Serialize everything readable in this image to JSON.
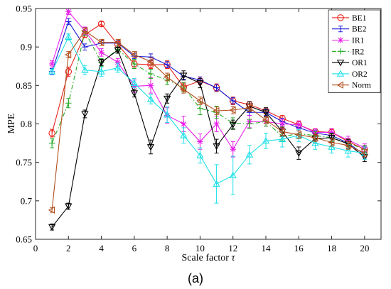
{
  "chart_data": {
    "type": "line",
    "xlabel": "Scale factor τ",
    "ylabel": "MPE",
    "panel_label": "(a)",
    "xlim": [
      0,
      21
    ],
    "ylim": [
      0.65,
      0.95
    ],
    "xticks": [
      0,
      2,
      4,
      6,
      8,
      10,
      12,
      14,
      16,
      18,
      20
    ],
    "yticks": [
      0.65,
      0.7,
      0.75,
      0.8,
      0.85,
      0.9,
      0.95
    ],
    "grid": false,
    "legend_position": "top-right",
    "x": [
      1,
      2,
      3,
      4,
      5,
      6,
      7,
      8,
      9,
      10,
      11,
      12,
      13,
      14,
      15,
      16,
      17,
      18,
      19,
      20
    ],
    "series": [
      {
        "name": "BE1",
        "color": "#e8231d",
        "dash": "",
        "marker": "circle",
        "values": [
          0.788,
          0.868,
          0.916,
          0.93,
          0.903,
          0.878,
          0.877,
          0.877,
          0.848,
          0.856,
          0.847,
          0.83,
          0.825,
          0.817,
          0.807,
          0.799,
          0.79,
          0.789,
          0.777,
          0.767
        ],
        "errors": [
          0.005,
          0.006,
          0.004,
          0.003,
          0.004,
          0.004,
          0.005,
          0.005,
          0.005,
          0.005,
          0.005,
          0.005,
          0.004,
          0.004,
          0.004,
          0.004,
          0.004,
          0.004,
          0.004,
          0.004
        ]
      },
      {
        "name": "BE2",
        "color": "#1a1adb",
        "dash": "",
        "marker": "bar",
        "values": [
          0.868,
          0.933,
          0.9,
          0.905,
          0.905,
          0.888,
          0.887,
          0.877,
          0.862,
          0.857,
          0.847,
          0.83,
          0.815,
          0.815,
          0.803,
          0.795,
          0.788,
          0.785,
          0.775,
          0.76
        ],
        "errors": [
          0.004,
          0.004,
          0.004,
          0.003,
          0.003,
          0.003,
          0.004,
          0.004,
          0.004,
          0.004,
          0.004,
          0.004,
          0.004,
          0.004,
          0.004,
          0.004,
          0.004,
          0.004,
          0.004,
          0.004
        ]
      },
      {
        "name": "IR1",
        "color": "#e81ee8",
        "dash": "",
        "marker": "star",
        "values": [
          0.878,
          0.946,
          0.921,
          0.893,
          0.88,
          0.849,
          0.85,
          0.811,
          0.8,
          0.777,
          0.8,
          0.767,
          0.803,
          0.803,
          0.8,
          0.799,
          0.789,
          0.789,
          0.779,
          0.769
        ],
        "errors": [
          0.004,
          0.004,
          0.005,
          0.005,
          0.005,
          0.008,
          0.01,
          0.01,
          0.01,
          0.01,
          0.01,
          0.01,
          0.008,
          0.006,
          0.006,
          0.005,
          0.005,
          0.005,
          0.005,
          0.005
        ]
      },
      {
        "name": "IR2",
        "color": "#22aa22",
        "dash": "6,3,1.5,3",
        "marker": "plus",
        "values": [
          0.775,
          0.827,
          0.92,
          0.88,
          0.897,
          0.878,
          0.865,
          0.857,
          0.848,
          0.82,
          0.815,
          0.801,
          0.8,
          0.803,
          0.784,
          0.787,
          0.785,
          0.782,
          0.775,
          0.767
        ],
        "errors": [
          0.006,
          0.006,
          0.005,
          0.005,
          0.005,
          0.006,
          0.006,
          0.006,
          0.006,
          0.008,
          0.008,
          0.007,
          0.006,
          0.006,
          0.006,
          0.006,
          0.005,
          0.005,
          0.005,
          0.005
        ]
      },
      {
        "name": "OR1",
        "color": "#000000",
        "dash": "",
        "marker": "tri-down",
        "values": [
          0.666,
          0.693,
          0.813,
          0.88,
          0.896,
          0.84,
          0.77,
          0.833,
          0.863,
          0.853,
          0.771,
          0.799,
          0.823,
          0.815,
          0.79,
          0.762,
          0.781,
          0.782,
          0.774,
          0.757
        ],
        "errors": [
          0.004,
          0.004,
          0.005,
          0.004,
          0.004,
          0.005,
          0.009,
          0.006,
          0.006,
          0.006,
          0.009,
          0.006,
          0.006,
          0.006,
          0.006,
          0.008,
          0.006,
          0.006,
          0.006,
          0.006
        ]
      },
      {
        "name": "OR2",
        "color": "#1ee0e8",
        "dash": "",
        "marker": "tri-up",
        "values": [
          0.868,
          0.913,
          0.87,
          0.868,
          0.873,
          0.853,
          0.832,
          0.812,
          0.785,
          0.759,
          0.722,
          0.733,
          0.76,
          0.778,
          0.78,
          0.785,
          0.775,
          0.77,
          0.765,
          0.762
        ],
        "errors": [
          0.003,
          0.004,
          0.006,
          0.006,
          0.006,
          0.006,
          0.006,
          0.01,
          0.01,
          0.01,
          0.025,
          0.025,
          0.012,
          0.01,
          0.01,
          0.008,
          0.008,
          0.008,
          0.008,
          0.008
        ]
      },
      {
        "name": "Norm",
        "color": "#b2501e",
        "dash": "",
        "marker": "tri-left",
        "values": [
          0.688,
          0.89,
          0.921,
          0.906,
          0.906,
          0.89,
          0.881,
          0.861,
          0.845,
          0.83,
          0.817,
          0.818,
          0.821,
          0.805,
          0.79,
          0.786,
          0.782,
          0.776,
          0.772,
          0.762
        ],
        "errors": [
          0.003,
          0.004,
          0.004,
          0.004,
          0.004,
          0.004,
          0.005,
          0.005,
          0.005,
          0.005,
          0.005,
          0.005,
          0.005,
          0.005,
          0.005,
          0.005,
          0.005,
          0.005,
          0.005,
          0.005
        ]
      }
    ]
  }
}
